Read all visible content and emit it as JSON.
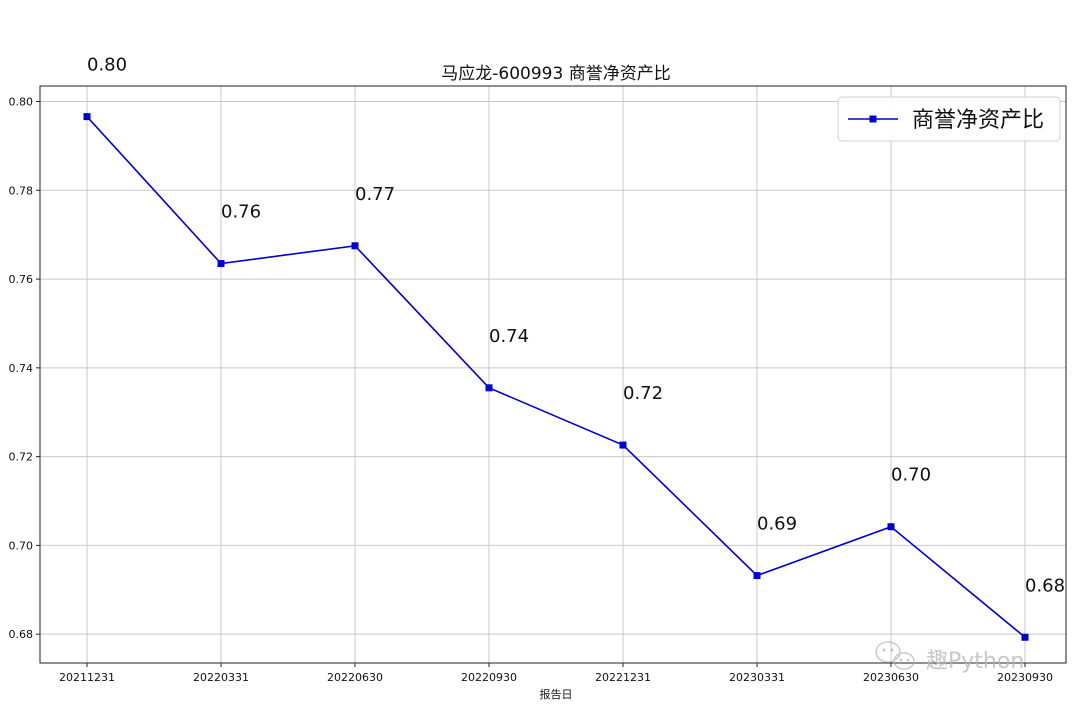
{
  "chart_data": {
    "type": "line",
    "title": "马应龙-600993 商誉净资产比",
    "xlabel": "报告日",
    "ylabel": "",
    "categories": [
      "20211231",
      "20220331",
      "20220630",
      "20220930",
      "20221231",
      "20230331",
      "20230630",
      "20230930"
    ],
    "series": [
      {
        "name": "商誉净资产比",
        "values": [
          0.7966,
          0.7635,
          0.7675,
          0.7355,
          0.7226,
          0.6932,
          0.7042,
          0.6793
        ],
        "data_labels": [
          "0.80",
          "0.76",
          "0.77",
          "0.74",
          "0.72",
          "0.69",
          "0.70",
          "0.68"
        ],
        "color": "#0000cc",
        "marker": "square"
      }
    ],
    "ylim": [
      0.6735,
      0.8035
    ],
    "yticks": [
      0.68,
      0.7,
      0.72,
      0.74,
      0.76,
      0.78,
      0.8
    ],
    "ytick_labels": [
      "0.68",
      "0.70",
      "0.72",
      "0.74",
      "0.76",
      "0.78",
      "0.80"
    ],
    "grid": true,
    "legend_position": "top-right"
  },
  "watermark": {
    "text": "趣Python",
    "icon": "wechat-icon"
  },
  "colors": {
    "line": "#0000cc",
    "grid": "#c8c8c8",
    "axis": "#222222",
    "watermark": "#b5b5b5"
  }
}
